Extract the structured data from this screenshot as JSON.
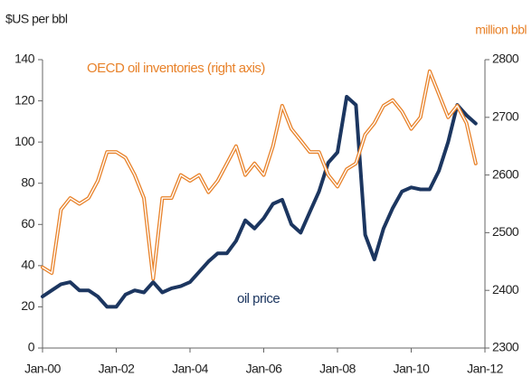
{
  "chart_data": {
    "type": "line",
    "left_axis_label": "$US per bbl",
    "right_axis_label": "million bbl",
    "x": [
      2000,
      2000.25,
      2000.5,
      2000.75,
      2001,
      2001.25,
      2001.5,
      2001.75,
      2002,
      2002.25,
      2002.5,
      2002.75,
      2003,
      2003.25,
      2003.5,
      2003.75,
      2004,
      2004.25,
      2004.5,
      2004.75,
      2005,
      2005.25,
      2005.5,
      2005.75,
      2006,
      2006.25,
      2006.5,
      2006.75,
      2007,
      2007.25,
      2007.5,
      2007.75,
      2008,
      2008.25,
      2008.5,
      2008.75,
      2009,
      2009.25,
      2009.5,
      2009.75,
      2010,
      2010.25,
      2010.5,
      2010.75,
      2011,
      2011.25,
      2011.5,
      2011.75
    ],
    "series": [
      {
        "name": "oil price",
        "color": "#1c3660",
        "axis": "y",
        "values": [
          25,
          28,
          31,
          32,
          28,
          28,
          25,
          20,
          20,
          26,
          28,
          27,
          32,
          27,
          29,
          30,
          32,
          37,
          42,
          46,
          46,
          52,
          62,
          58,
          63,
          70,
          72,
          60,
          56,
          66,
          76,
          90,
          95,
          122,
          118,
          55,
          43,
          58,
          68,
          76,
          78,
          77,
          77,
          86,
          100,
          118,
          113,
          109
        ]
      },
      {
        "name": "OECD oil inventories (right axis)",
        "color": "#e8822a",
        "axis": "y2",
        "values": [
          2440,
          2430,
          2540,
          2560,
          2550,
          2560,
          2590,
          2640,
          2640,
          2630,
          2600,
          2560,
          2420,
          2560,
          2560,
          2600,
          2590,
          2600,
          2570,
          2590,
          2620,
          2650,
          2600,
          2620,
          2600,
          2650,
          2720,
          2680,
          2660,
          2640,
          2640,
          2600,
          2580,
          2610,
          2620,
          2670,
          2690,
          2720,
          2730,
          2710,
          2680,
          2700,
          2780,
          2740,
          2700,
          2720,
          2690,
          2620
        ]
      }
    ],
    "xlim": [
      2000,
      2012
    ],
    "xticks": [
      {
        "value": 2000,
        "label": "Jan-00"
      },
      {
        "value": 2002,
        "label": "Jan-02"
      },
      {
        "value": 2004,
        "label": "Jan-04"
      },
      {
        "value": 2006,
        "label": "Jan-06"
      },
      {
        "value": 2008,
        "label": "Jan-08"
      },
      {
        "value": 2010,
        "label": "Jan-10"
      },
      {
        "value": 2012,
        "label": "Jan-12"
      }
    ],
    "ylim": [
      0,
      140
    ],
    "yticks": [
      0,
      20,
      40,
      60,
      80,
      100,
      120,
      140
    ],
    "y2lim": [
      2300,
      2800
    ],
    "y2ticks": [
      2300,
      2400,
      2500,
      2600,
      2700,
      2800
    ]
  }
}
